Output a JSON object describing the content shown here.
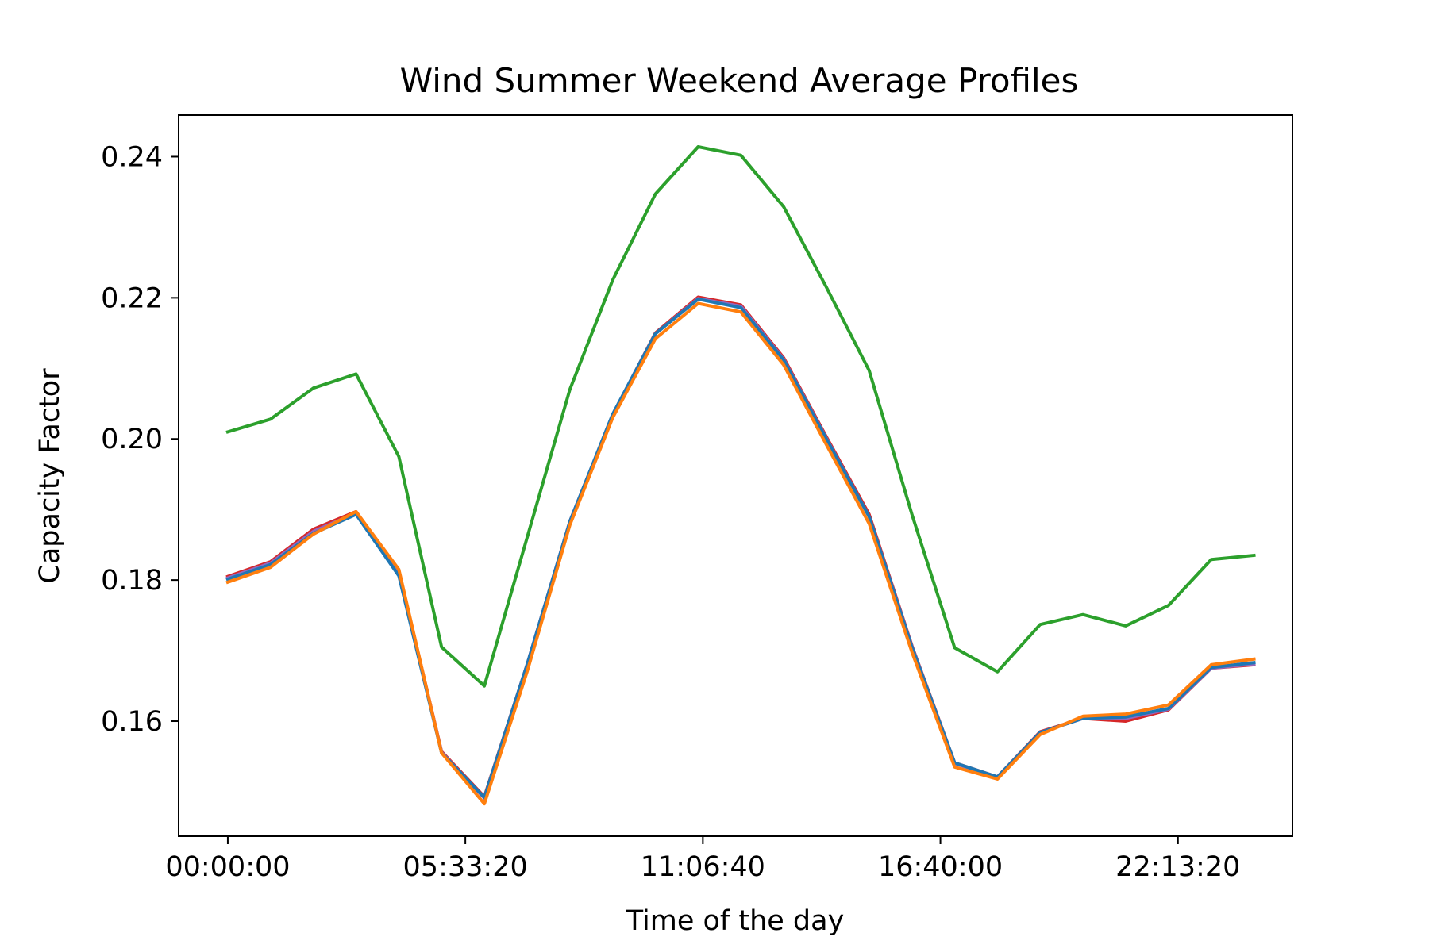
{
  "chart_data": {
    "type": "line",
    "title": "Wind Summer Weekend Average Profiles",
    "xlabel": "Time of the day",
    "ylabel": "Capacity Factor",
    "x_unit": "seconds of day",
    "x_ticks": [
      {
        "value": 0,
        "label": "00:00:00"
      },
      {
        "value": 20000,
        "label": "05:33:20"
      },
      {
        "value": 40000,
        "label": "11:06:40"
      },
      {
        "value": 60000,
        "label": "16:40:00"
      },
      {
        "value": 80000,
        "label": "22:13:20"
      }
    ],
    "y_ticks": [
      {
        "value": 0.16,
        "label": "0.16"
      },
      {
        "value": 0.18,
        "label": "0.18"
      },
      {
        "value": 0.2,
        "label": "0.20"
      },
      {
        "value": 0.22,
        "label": "0.22"
      },
      {
        "value": 0.24,
        "label": "0.24"
      }
    ],
    "xlim": [
      -4140,
      89640
    ],
    "ylim": [
      0.1437,
      0.2459
    ],
    "grid": false,
    "legend": "none",
    "x": [
      0,
      3600,
      7200,
      10800,
      14400,
      18000,
      21600,
      25200,
      28800,
      32400,
      36000,
      39600,
      43200,
      46800,
      50400,
      54000,
      57600,
      61200,
      64800,
      68400,
      72000,
      75600,
      79200,
      82800,
      86400
    ],
    "series": [
      {
        "color": "#d62728",
        "values": [
          0.1805,
          0.1826,
          0.1872,
          0.1897,
          0.1812,
          0.1557,
          0.1493,
          0.168,
          0.1883,
          0.2034,
          0.215,
          0.2201,
          0.219,
          0.2115,
          0.2003,
          0.1893,
          0.1707,
          0.1541,
          0.1521,
          0.1585,
          0.1604,
          0.16,
          0.1616,
          0.1675,
          0.168
        ]
      },
      {
        "color": "#9467bd",
        "values": [
          0.1803,
          0.1824,
          0.1869,
          0.1895,
          0.181,
          0.1556,
          0.1491,
          0.168,
          0.1883,
          0.2034,
          0.2149,
          0.2199,
          0.2188,
          0.2113,
          0.2001,
          0.189,
          0.1706,
          0.154,
          0.1521,
          0.1584,
          0.1604,
          0.1604,
          0.1617,
          0.1675,
          0.1681
        ]
      },
      {
        "color": "#1f77b4",
        "values": [
          0.1801,
          0.1822,
          0.1866,
          0.1893,
          0.1806,
          0.1555,
          0.1492,
          0.168,
          0.1883,
          0.2035,
          0.2149,
          0.2198,
          0.2186,
          0.2112,
          0.2,
          0.189,
          0.1705,
          0.1541,
          0.1521,
          0.1584,
          0.1604,
          0.1606,
          0.1618,
          0.1676,
          0.1683
        ]
      },
      {
        "color": "#2ca02c",
        "values": [
          0.201,
          0.2028,
          0.2072,
          0.2092,
          0.1975,
          0.1705,
          0.165,
          0.186,
          0.207,
          0.2225,
          0.2347,
          0.2414,
          0.2402,
          0.2329,
          0.2215,
          0.2097,
          0.1893,
          0.1704,
          0.167,
          0.1737,
          0.1751,
          0.1735,
          0.1764,
          0.1829,
          0.1835
        ]
      },
      {
        "color": "#ff7f0e",
        "values": [
          0.1797,
          0.1818,
          0.1865,
          0.1897,
          0.1815,
          0.1555,
          0.1483,
          0.167,
          0.1878,
          0.203,
          0.2142,
          0.2192,
          0.218,
          0.2105,
          0.1992,
          0.188,
          0.1698,
          0.1535,
          0.1518,
          0.1581,
          0.1607,
          0.161,
          0.1623,
          0.168,
          0.1688
        ]
      }
    ]
  }
}
